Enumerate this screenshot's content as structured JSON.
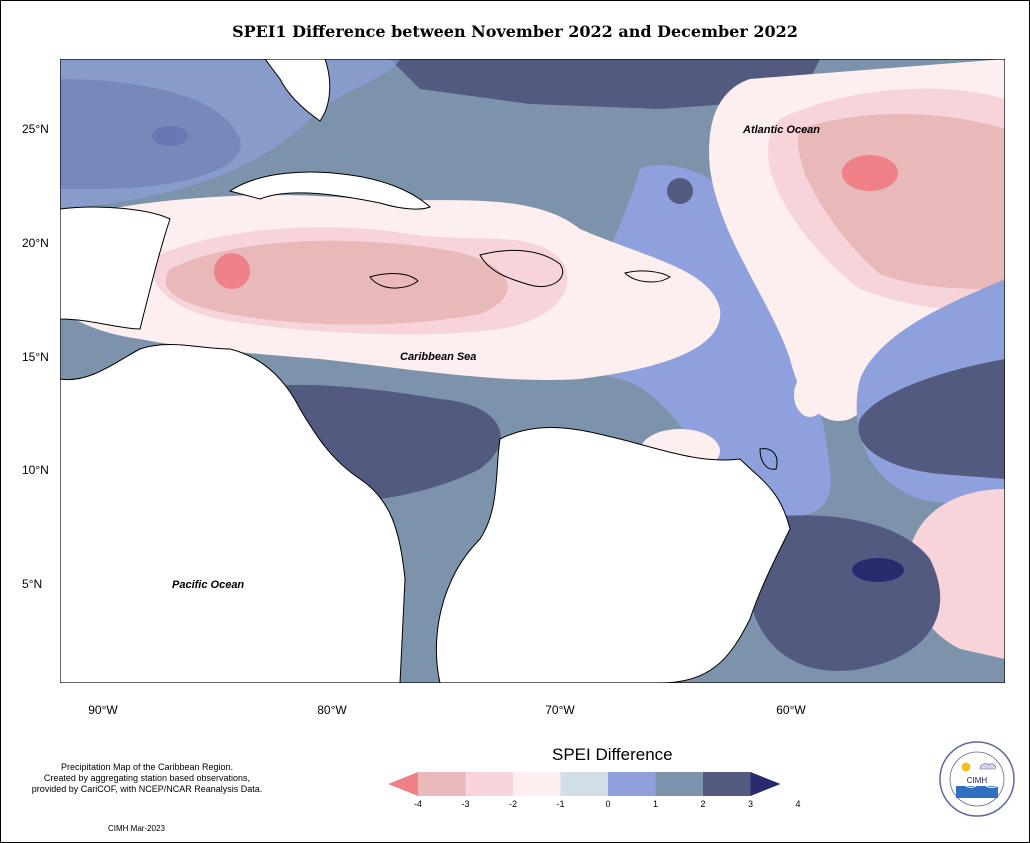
{
  "title": "SPEI1 Difference between November 2022 and December 2022",
  "lat_labels": [
    "25°N",
    "20°N",
    "15°N",
    "10°N",
    "5°N"
  ],
  "lon_labels": [
    "90°W",
    "80°W",
    "70°W",
    "60°W"
  ],
  "ocean_labels": {
    "atlantic": "Atlantic Ocean",
    "caribbean": "Caribbean Sea",
    "pacific": "Pacific Ocean"
  },
  "legend": {
    "title": "SPEI Difference",
    "ticks": [
      "-4",
      "-3",
      "-2",
      "-1",
      "0",
      "1",
      "2",
      "3",
      "4"
    ],
    "colors": [
      "#f08088",
      "#e9b8b8",
      "#f7d4da",
      "#fdeef0",
      "#cfdfe5",
      "#8fa1dc",
      "#7c93ab",
      "#525b7f",
      "#2a2a6e"
    ]
  },
  "note": {
    "line1": "Precipitation Map of the Caribbean Region.",
    "line2": "Created by aggregating station based observations,",
    "line3": "provided by CariCOF, with NCEP/NCAR Reanalysis Data."
  },
  "credit": "CIMH Mar-2023",
  "logo_text": "CIMH"
}
